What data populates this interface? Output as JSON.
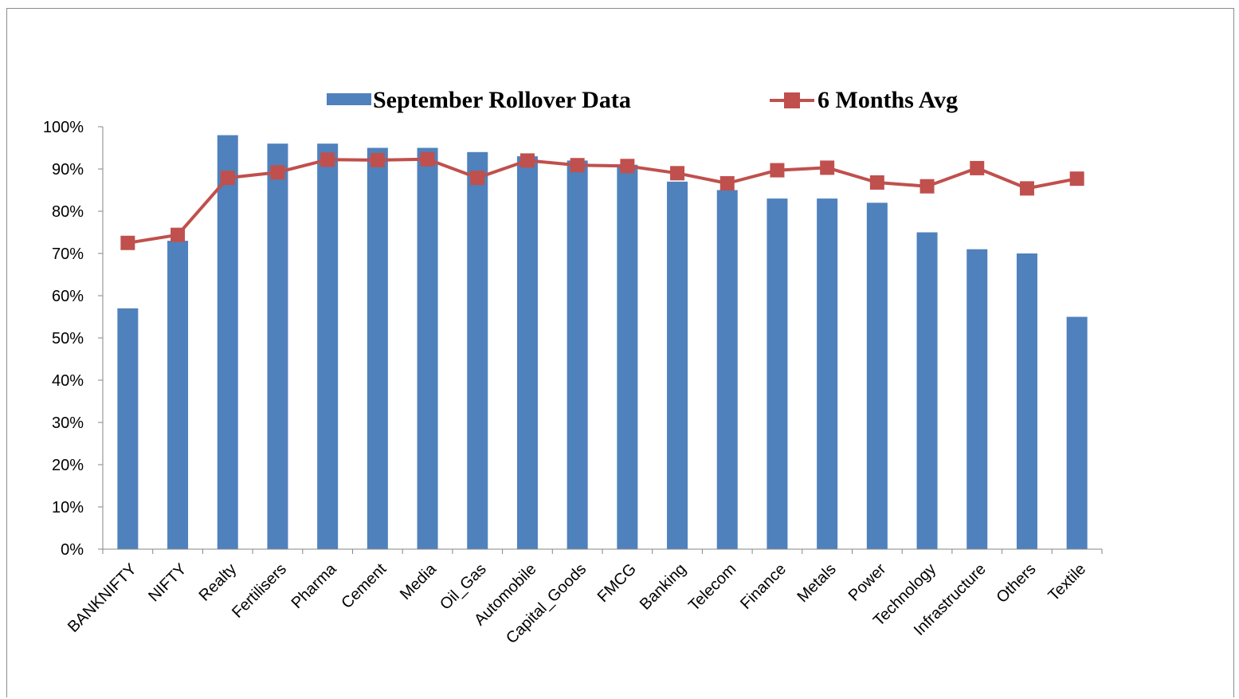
{
  "chart_data": {
    "type": "bar",
    "categories": [
      "BANKNIFTY",
      "NIFTY",
      "Realty",
      "Fertilisers",
      "Pharma",
      "Cement",
      "Media",
      "Oil_Gas",
      "Automobile",
      "Capital_Goods",
      "FMCG",
      "Banking",
      "Telecom",
      "Finance",
      "Metals",
      "Power",
      "Technology",
      "Infrastructure",
      "Others",
      "Textile"
    ],
    "series": [
      {
        "name": "September Rollover Data",
        "type": "bar",
        "values": [
          0.57,
          0.73,
          0.98,
          0.96,
          0.96,
          0.95,
          0.95,
          0.94,
          0.93,
          0.92,
          0.91,
          0.87,
          0.85,
          0.83,
          0.83,
          0.82,
          0.75,
          0.71,
          0.7,
          0.55
        ]
      },
      {
        "name": "6 Months Avg",
        "type": "line",
        "values": [
          0.725,
          0.744,
          0.879,
          0.892,
          0.922,
          0.921,
          0.923,
          0.879,
          0.92,
          0.909,
          0.907,
          0.89,
          0.866,
          0.897,
          0.903,
          0.868,
          0.859,
          0.902,
          0.854,
          0.877
        ]
      }
    ],
    "yticks": [
      "0%",
      "10%",
      "20%",
      "30%",
      "40%",
      "50%",
      "60%",
      "70%",
      "80%",
      "90%",
      "100%"
    ],
    "ylim": [
      0,
      1
    ],
    "title": "",
    "xlabel": "",
    "ylabel": "",
    "grid": false,
    "legend_position": "top",
    "colors": {
      "bar": "#4f81bd",
      "line": "#c0504d"
    }
  }
}
